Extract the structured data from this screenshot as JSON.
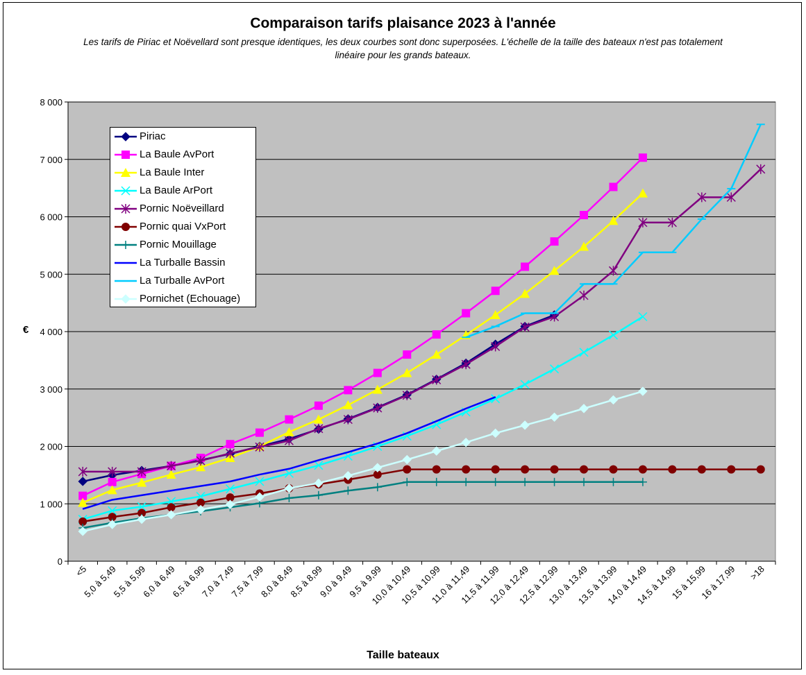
{
  "title": "Comparaison tarifs plaisance 2023 à l'année",
  "subtitle": "Les tarifs de Piriac et Noëvellard sont presque identiques, les deux courbes sont donc superposées. L'échelle de la taille des bateaux n'est pas totalement linéaire pour les grands bateaux.",
  "chart_data": {
    "type": "line",
    "title": "Comparaison tarifs plaisance 2023 à l'année",
    "xlabel": "Taille bateaux",
    "ylabel": "€",
    "ylim": [
      0,
      8000
    ],
    "yticks": [
      0,
      1000,
      2000,
      3000,
      4000,
      5000,
      6000,
      7000,
      8000
    ],
    "ytick_labels": [
      "0",
      "1 000",
      "2 000",
      "3 000",
      "4 000",
      "5 000",
      "6 000",
      "7 000",
      "8 000"
    ],
    "grid": true,
    "legend_position": "top-left",
    "plot_background": "#c0c0c0",
    "categories": [
      "<5",
      "5,0 à 5,49",
      "5,5 à 5,99",
      "6,0 à 6,49",
      "6,5 à 6,99",
      "7,0 à 7,49",
      "7,5 à 7,99",
      "8,0 à 8,49",
      "8,5 à 8,99",
      "9,0 à 9,49",
      "9,5 à 9,99",
      "10,0 à 10,49",
      "10,5 à 10,99",
      "11,0 à 11,49",
      "11,5 à 11,99",
      "12,0 à 12,49",
      "12,5 à 12,99",
      "13,0 à 13,49",
      "13,5 à 13,99",
      "14,0 à 14,49",
      "14,5 à 14,99",
      "15 à 15,99",
      "16 à 17,99",
      ">18"
    ],
    "series": [
      {
        "name": "Piriac",
        "color": "#000080",
        "marker": "diamond",
        "values": [
          1390,
          1500,
          1580,
          1660,
          1760,
          1870,
          2000,
          2130,
          2300,
          2480,
          2680,
          2900,
          3170,
          3450,
          3780,
          4090,
          4290,
          null,
          null,
          null,
          null,
          null,
          null,
          null
        ]
      },
      {
        "name": "La Baule AvPort",
        "color": "#ff00ff",
        "marker": "square",
        "values": [
          1140,
          1380,
          1520,
          1660,
          1800,
          2040,
          2240,
          2470,
          2710,
          2980,
          3280,
          3600,
          3950,
          4320,
          4710,
          5130,
          5570,
          6030,
          6520,
          7030,
          null,
          null,
          null,
          null
        ]
      },
      {
        "name": "La Baule Inter",
        "color": "#ffff00",
        "marker": "triangle",
        "values": [
          1020,
          1240,
          1370,
          1510,
          1640,
          1800,
          2000,
          2250,
          2470,
          2720,
          2990,
          3280,
          3600,
          3940,
          4290,
          4660,
          5060,
          5480,
          5930,
          6410,
          null,
          null,
          null,
          null
        ]
      },
      {
        "name": "La Baule ArPort",
        "color": "#00ffff",
        "marker": "x",
        "values": [
          730,
          880,
          950,
          1040,
          1130,
          1260,
          1390,
          1530,
          1670,
          1830,
          2000,
          2180,
          2380,
          2600,
          2830,
          3080,
          3350,
          3640,
          3940,
          4260,
          null,
          null,
          null,
          null
        ]
      },
      {
        "name": "Pornic Noëveillard",
        "color": "#800080",
        "marker": "star",
        "values": [
          1560,
          1560,
          1560,
          1660,
          1750,
          1880,
          1990,
          2100,
          2310,
          2470,
          2670,
          2890,
          3160,
          3430,
          3740,
          4080,
          4260,
          4630,
          5060,
          5900,
          5900,
          6340,
          6340,
          6830
        ]
      },
      {
        "name": "Pornic quai VxPort",
        "color": "#800000",
        "marker": "circle",
        "values": [
          690,
          770,
          840,
          940,
          1020,
          1110,
          1180,
          1270,
          1340,
          1420,
          1510,
          1600,
          1600,
          1600,
          1600,
          1600,
          1600,
          1600,
          1600,
          1600,
          1600,
          1600,
          1600,
          1600
        ]
      },
      {
        "name": "Pornic Mouillage",
        "color": "#008080",
        "marker": "plus",
        "values": [
          580,
          670,
          750,
          810,
          870,
          940,
          1010,
          1100,
          1150,
          1230,
          1290,
          1380,
          1380,
          1380,
          1380,
          1380,
          1380,
          1380,
          1380,
          1380,
          null,
          null,
          null,
          null
        ]
      },
      {
        "name": "La Turballe Bassin",
        "color": "#0000ff",
        "marker": "none",
        "values": [
          910,
          1070,
          1150,
          1230,
          1310,
          1390,
          1510,
          1610,
          1760,
          1900,
          2050,
          2230,
          2440,
          2660,
          2860,
          null,
          null,
          null,
          null,
          null,
          null,
          null,
          null,
          null
        ]
      },
      {
        "name": "La Turballe AvPort",
        "color": "#00ccff",
        "marker": "dash",
        "values": [
          null,
          null,
          null,
          null,
          null,
          null,
          null,
          null,
          null,
          null,
          null,
          null,
          null,
          3900,
          4090,
          4320,
          4320,
          4830,
          4830,
          5380,
          5380,
          5960,
          6490,
          7610
        ]
      },
      {
        "name": "Pornichet (Echouage)",
        "color": "#ccffff",
        "marker": "diamond",
        "values": [
          520,
          640,
          730,
          810,
          900,
          990,
          1120,
          1270,
          1360,
          1490,
          1630,
          1770,
          1920,
          2070,
          2230,
          2370,
          2510,
          2660,
          2810,
          2960,
          null,
          null,
          null,
          null
        ]
      }
    ]
  }
}
